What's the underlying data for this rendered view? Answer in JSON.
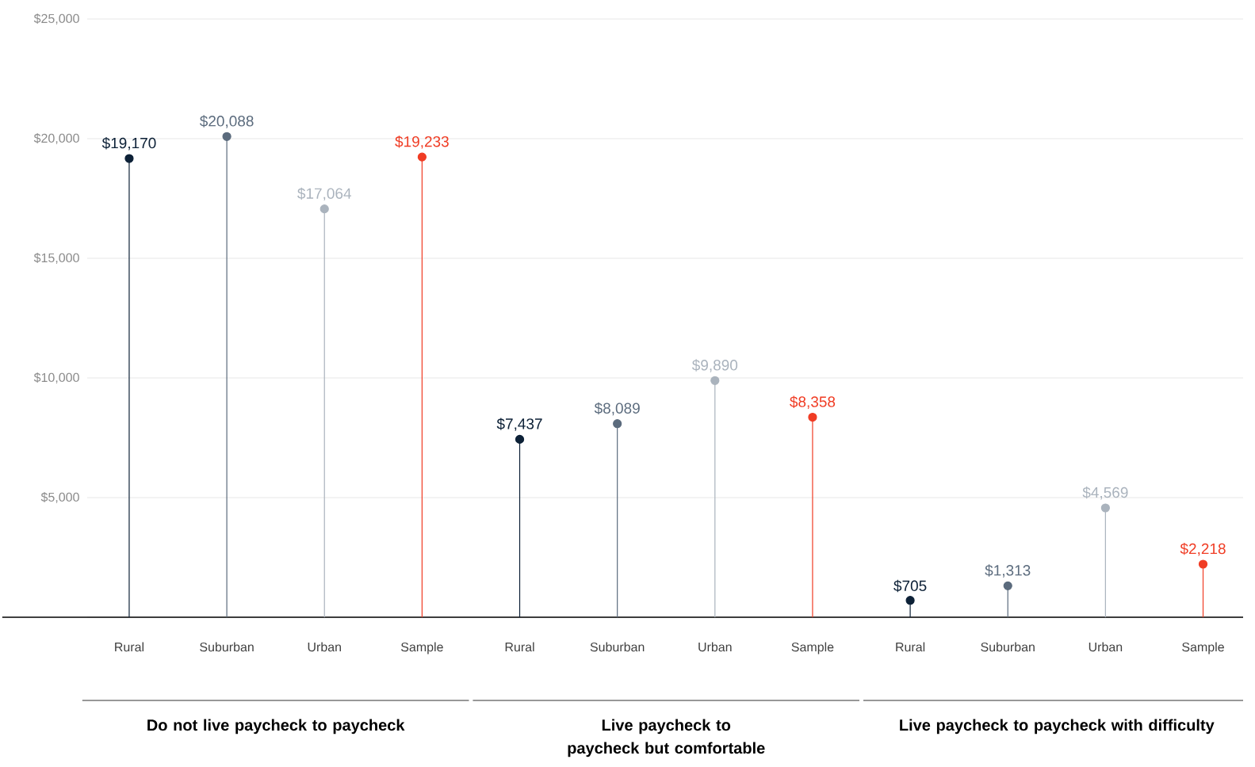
{
  "chart_data": {
    "type": "lollipop",
    "categories": [
      "Rural",
      "Suburban",
      "Urban",
      "Sample",
      "Rural",
      "Suburban",
      "Urban",
      "Sample",
      "Rural",
      "Suburban",
      "Urban",
      "Sample"
    ],
    "values": [
      19170,
      20088,
      17064,
      19233,
      7437,
      8089,
      9890,
      8358,
      705,
      1313,
      4569,
      2218
    ],
    "value_labels": [
      "$19,170",
      "$20,088",
      "$17,064",
      "$19,233",
      "$7,437",
      "$8,089",
      "$9,890",
      "$8,358",
      "$705",
      "$1,313",
      "$4,569",
      "$2,218"
    ],
    "colors": [
      "#0d2137",
      "#5b6b7d",
      "#aab3bd",
      "#f03c24",
      "#0d2137",
      "#5b6b7d",
      "#aab3bd",
      "#f03c24",
      "#0d2137",
      "#5b6b7d",
      "#aab3bd",
      "#f03c24"
    ],
    "ylim": [
      0,
      25000
    ],
    "yticks": [
      {
        "value": 0,
        "label": null
      },
      {
        "value": 5000,
        "label": "$5,000"
      },
      {
        "value": 10000,
        "label": "$10,000"
      },
      {
        "value": 15000,
        "label": "$15,000"
      },
      {
        "value": 20000,
        "label": "$20,000"
      },
      {
        "value": 25000,
        "label": "$25,000"
      }
    ],
    "grid": "y",
    "marker": "circle",
    "annotations": [
      "Do not live paycheck to paycheck",
      "Live paycheck to paycheck but comfortable",
      "Live paycheck to paycheck with difficulty"
    ]
  }
}
